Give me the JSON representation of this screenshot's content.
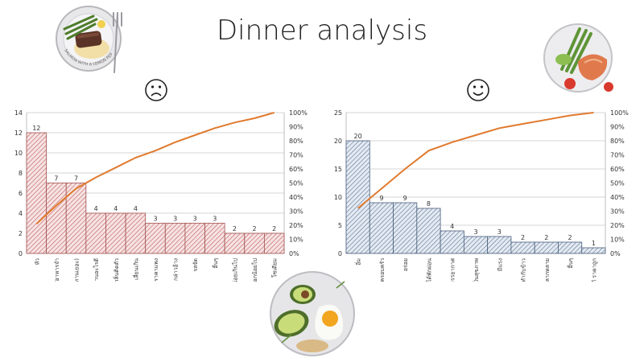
{
  "title": "Dinner analysis",
  "colors": {
    "line": "#E07A2E",
    "left_bar_stroke": "#A0524F",
    "left_bar_fill": "#F6E3E3",
    "left_hatch": "#C05A5A",
    "right_bar_stroke": "#4A607A",
    "right_bar_fill": "#E4EAF2",
    "right_hatch": "#5C7594",
    "grid": "#D6D6D6",
    "text": "#333333"
  },
  "chart_data": [
    {
      "type": "bar",
      "title": "",
      "categories": [
        "หัว",
        "ไม่อร่อย/อาหารจำ",
        "อ้วน (ทานเยอะ)",
        "ไม่รู้จะทานอะไรดี",
        "กลิ่นติดตัว",
        "เลี่ยนเกิน",
        "ราคาแพง",
        "กล่าวอ้าง",
        "รสจัด",
        "อื่นๆ",
        "ตัวเลือกน้อยเกินไป",
        "ตัวเลือกน้อยไป",
        "โซเดียม"
      ],
      "values": [
        12,
        7,
        7,
        4,
        4,
        4,
        3,
        3,
        3,
        3,
        2,
        2,
        2
      ],
      "cumulative_percent": [
        21,
        34,
        46,
        54,
        61,
        68,
        73,
        79,
        84,
        89,
        93,
        96,
        100
      ],
      "ylim": [
        0,
        14
      ],
      "y_ticks": [
        "0",
        "2",
        "4",
        "6",
        "8",
        "10",
        "12",
        "14"
      ],
      "y2_ticks": [
        "0%",
        "10%",
        "20%",
        "30%",
        "40%",
        "50%",
        "60%",
        "70%",
        "80%",
        "90%",
        "100%"
      ],
      "grid": true,
      "legend": "none"
    },
    {
      "type": "bar",
      "title": "",
      "categories": [
        "อิ่ม",
        "ใช้เวลาทานพร้อม/ครอบครัว",
        "อร่อย",
        "ได้พักผ่อน",
        "เปลี่ยนบรรยากาศ",
        "เป็นสุขภาพ",
        "มีแรง",
        "ไม่เสียเวลาทำกับข้าว",
        "ทานอะไรได้หลากหลาย",
        "อื่นๆ",
        "ได้อาหารดี ราคาถูก"
      ],
      "values": [
        20,
        9,
        9,
        8,
        4,
        3,
        3,
        2,
        2,
        2,
        1
      ],
      "cumulative_percent": [
        32,
        46,
        60,
        73,
        79,
        84,
        89,
        92,
        95,
        98,
        100
      ],
      "ylim": [
        0,
        25
      ],
      "y_ticks": [
        "0",
        "5",
        "10",
        "15",
        "20",
        "25"
      ],
      "y2_ticks": [
        "0%",
        "10%",
        "20%",
        "30%",
        "40%",
        "50%",
        "60%",
        "70%",
        "80%",
        "90%",
        "100%"
      ],
      "grid": true,
      "legend": "none"
    }
  ],
  "icons": {
    "sad": "sad-face-icon",
    "happy": "happy-face-icon",
    "photo_1": "salmon-dish-photo",
    "photo_2": "steak-dish-photo",
    "photo_3": "avocado-egg-photo"
  },
  "photo_caption": "SALMON WITH A LEMON PEPPER"
}
